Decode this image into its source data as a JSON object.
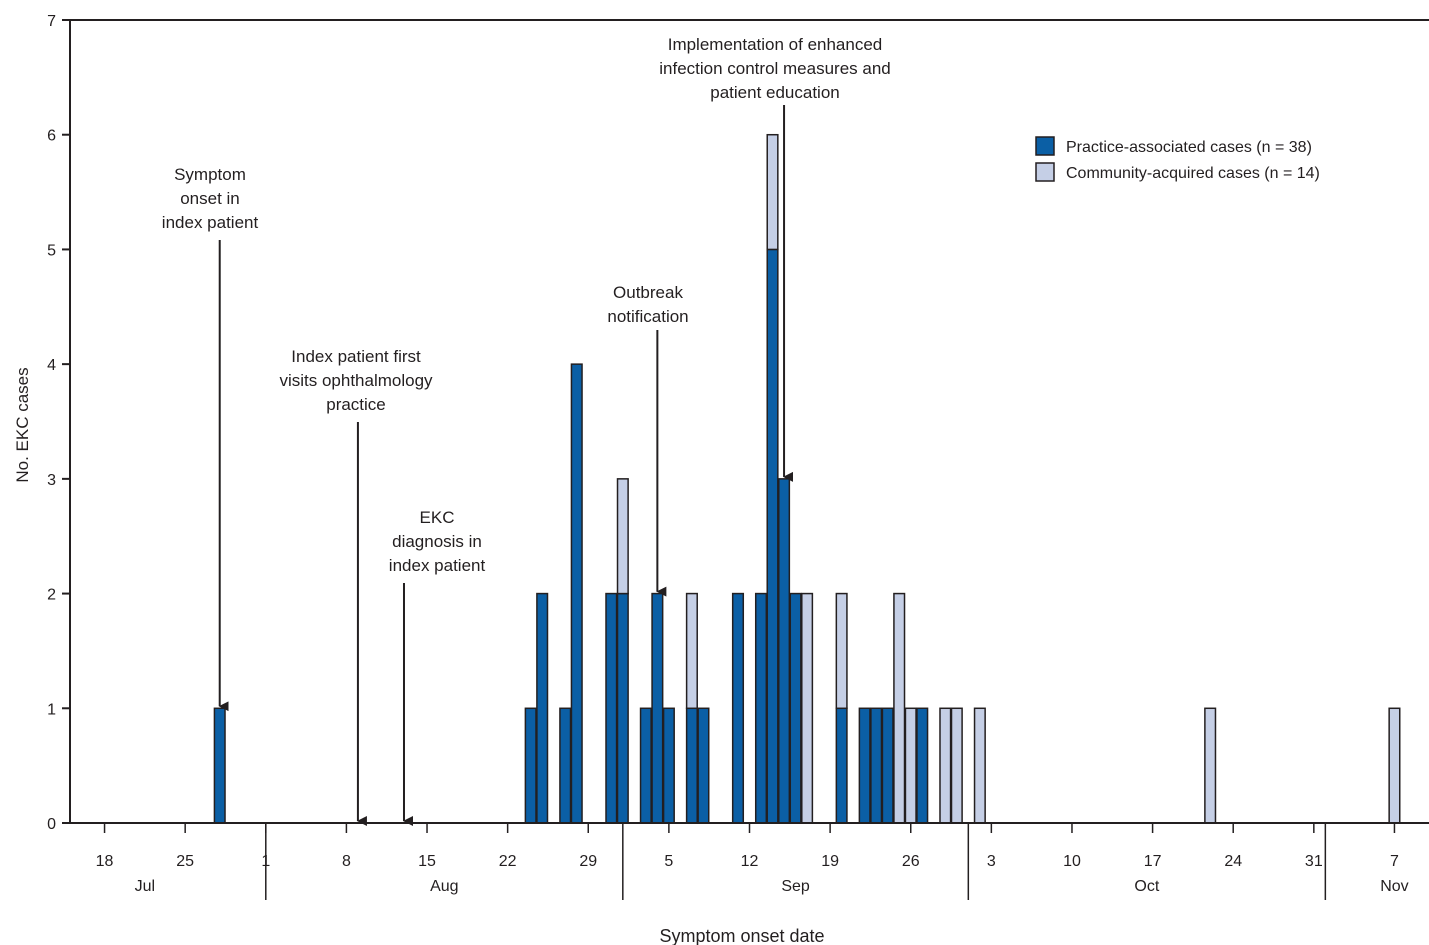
{
  "chart_data": {
    "type": "bar",
    "stacked": true,
    "title": "",
    "xlabel": "Symptom onset date",
    "ylabel": "No. EKC cases",
    "ylim": [
      0,
      7
    ],
    "yticks": [
      "0",
      "1",
      "2",
      "3",
      "4",
      "5",
      "6",
      "7"
    ],
    "grid": false,
    "legend_position": "top-right",
    "x_range": [
      "2014-07-15",
      "2014-11-10"
    ],
    "x_tick_labels": [
      {
        "date": "2014-07-18",
        "label": "18"
      },
      {
        "date": "2014-07-25",
        "label": "25"
      },
      {
        "date": "2014-08-01",
        "label": "1"
      },
      {
        "date": "2014-08-08",
        "label": "8"
      },
      {
        "date": "2014-08-15",
        "label": "15"
      },
      {
        "date": "2014-08-22",
        "label": "22"
      },
      {
        "date": "2014-08-29",
        "label": "29"
      },
      {
        "date": "2014-09-05",
        "label": "5"
      },
      {
        "date": "2014-09-12",
        "label": "12"
      },
      {
        "date": "2014-09-19",
        "label": "19"
      },
      {
        "date": "2014-09-26",
        "label": "26"
      },
      {
        "date": "2014-10-03",
        "label": "3"
      },
      {
        "date": "2014-10-10",
        "label": "10"
      },
      {
        "date": "2014-10-17",
        "label": "17"
      },
      {
        "date": "2014-10-24",
        "label": "24"
      },
      {
        "date": "2014-10-31",
        "label": "31"
      },
      {
        "date": "2014-11-07",
        "label": "7"
      }
    ],
    "months": [
      {
        "label": "Jul",
        "start": "2014-07-15",
        "end": "2014-07-31"
      },
      {
        "label": "Aug",
        "start": "2014-08-01",
        "end": "2014-08-31"
      },
      {
        "label": "Sep",
        "start": "2014-09-01",
        "end": "2014-09-30"
      },
      {
        "label": "Oct",
        "start": "2014-10-01",
        "end": "2014-10-31"
      },
      {
        "label": "Nov",
        "start": "2014-11-01",
        "end": "2014-11-10"
      }
    ],
    "series": [
      {
        "name": "Practice-associated cases (n = 38)",
        "color": "#0b5fa5"
      },
      {
        "name": "Community-acquired cases (n = 14)",
        "color": "#c5cfe6"
      }
    ],
    "bars": [
      {
        "date": "2014-07-28",
        "practice": 1,
        "community": 0
      },
      {
        "date": "2014-08-24",
        "practice": 1,
        "community": 0
      },
      {
        "date": "2014-08-25",
        "practice": 2,
        "community": 0
      },
      {
        "date": "2014-08-27",
        "practice": 1,
        "community": 0
      },
      {
        "date": "2014-08-28",
        "practice": 4,
        "community": 0
      },
      {
        "date": "2014-08-31",
        "practice": 2,
        "community": 0
      },
      {
        "date": "2014-09-01",
        "practice": 2,
        "community": 1
      },
      {
        "date": "2014-09-03",
        "practice": 1,
        "community": 0
      },
      {
        "date": "2014-09-04",
        "practice": 2,
        "community": 0
      },
      {
        "date": "2014-09-05",
        "practice": 1,
        "community": 0
      },
      {
        "date": "2014-09-07",
        "practice": 1,
        "community": 1
      },
      {
        "date": "2014-09-08",
        "practice": 1,
        "community": 0
      },
      {
        "date": "2014-09-11",
        "practice": 2,
        "community": 0
      },
      {
        "date": "2014-09-13",
        "practice": 2,
        "community": 0
      },
      {
        "date": "2014-09-14",
        "practice": 5,
        "community": 1
      },
      {
        "date": "2014-09-15",
        "practice": 3,
        "community": 0
      },
      {
        "date": "2014-09-16",
        "practice": 2,
        "community": 0
      },
      {
        "date": "2014-09-17",
        "practice": 0,
        "community": 2
      },
      {
        "date": "2014-09-20",
        "practice": 1,
        "community": 1
      },
      {
        "date": "2014-09-22",
        "practice": 1,
        "community": 0
      },
      {
        "date": "2014-09-23",
        "practice": 1,
        "community": 0
      },
      {
        "date": "2014-09-24",
        "practice": 1,
        "community": 0
      },
      {
        "date": "2014-09-25",
        "practice": 0,
        "community": 2
      },
      {
        "date": "2014-09-26",
        "practice": 0,
        "community": 1
      },
      {
        "date": "2014-09-27",
        "practice": 1,
        "community": 0
      },
      {
        "date": "2014-09-29",
        "practice": 0,
        "community": 1
      },
      {
        "date": "2014-09-30",
        "practice": 0,
        "community": 1
      },
      {
        "date": "2014-10-02",
        "practice": 0,
        "community": 1
      },
      {
        "date": "2014-10-22",
        "practice": 0,
        "community": 1
      },
      {
        "date": "2014-11-07",
        "practice": 0,
        "community": 1
      }
    ],
    "annotations": [
      {
        "lines": [
          "Symptom",
          "onset in",
          "index patient"
        ],
        "date": "2014-07-28",
        "value": 1
      },
      {
        "lines": [
          "Index patient first",
          "visits ophthalmology",
          "practice"
        ],
        "date": "2014-08-09",
        "value": 0
      },
      {
        "lines": [
          "EKC",
          "diagnosis in",
          "index patient"
        ],
        "date": "2014-08-13",
        "value": 0
      },
      {
        "lines": [
          "Outbreak",
          "notification"
        ],
        "date": "2014-09-04",
        "value": 2
      },
      {
        "lines": [
          "Implementation of enhanced",
          "infection control measures and",
          "patient education"
        ],
        "date": "2014-09-15",
        "value": 3
      }
    ]
  }
}
